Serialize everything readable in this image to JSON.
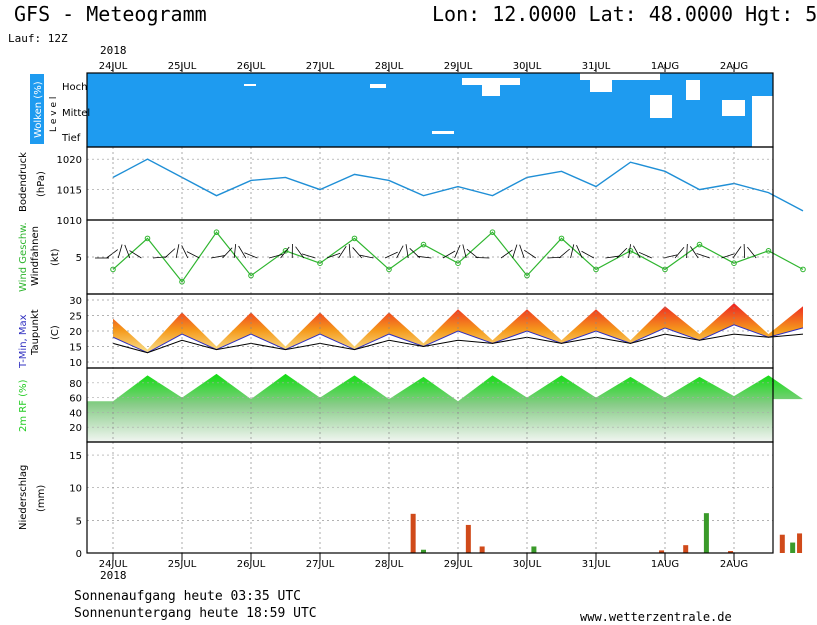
{
  "header": {
    "title": "GFS - Meteogramm",
    "location": "Lon: 12.0000 Lat: 48.0000 Hgt: 5",
    "run": "Lauf: 12Z"
  },
  "axis": {
    "year": "2018",
    "dates": [
      "24JUL",
      "25JUL",
      "26JUL",
      "27JUL",
      "28JUL",
      "29JUL",
      "30JUL",
      "31JUL",
      "1AUG",
      "2AUG"
    ]
  },
  "footer": {
    "sunrise": "Sonnenaufgang heute 03:35 UTC",
    "sunset": "Sonnenuntergang heute 18:59 UTC",
    "source": "www.wetterzentrale.de"
  },
  "colors": {
    "clouds": "#1e9bf0",
    "pressure": "#1f8fd6",
    "wind": "#2fb52f",
    "temp_max": "#ee2222",
    "temp_mid": "#f59a1c",
    "dewpoint": "#000000",
    "tmin": "#3030c0",
    "rh": "#22cc22",
    "precip_conv": "#d04a1a",
    "precip_green": "#3a9a2a"
  },
  "chart_data": [
    {
      "type": "area",
      "panel": "clouds",
      "ylabel": "Wolken (%)",
      "levels": [
        "Hoch",
        "Mittel",
        "Tief"
      ],
      "level_axis_label": "L e v e l"
    },
    {
      "type": "line",
      "panel": "pressure",
      "ylabel": "Bodendruck",
      "unit": "(hPa)",
      "ylim": [
        1010,
        1022
      ],
      "yticks": [
        1010,
        1015,
        1020
      ],
      "x": [
        0,
        0.5,
        1,
        1.5,
        2,
        2.5,
        3,
        3.5,
        4,
        4.5,
        5,
        5.5,
        6,
        6.5,
        7,
        7.5,
        8,
        8.5,
        9,
        9.5,
        10
      ],
      "values": [
        1017,
        1020,
        1017,
        1014,
        1016.5,
        1017,
        1015,
        1017.5,
        1016.5,
        1014,
        1015.5,
        1014,
        1017,
        1018,
        1015.5,
        1019.5,
        1018,
        1015,
        1016,
        1014.5,
        1011.5
      ]
    },
    {
      "type": "line",
      "panel": "wind",
      "ylabel": "Wind Geschw.",
      "ylabel2": "Windfahnen",
      "unit": "(kt)",
      "yticks": [
        5
      ],
      "x": [
        0,
        0.5,
        1,
        1.5,
        2,
        2.5,
        3,
        3.5,
        4,
        4.5,
        5,
        5.5,
        6,
        6.5,
        7,
        7.5,
        8,
        8.5,
        9,
        9.5,
        10
      ],
      "values": [
        3,
        8,
        1,
        9,
        2,
        6,
        4,
        8,
        3,
        7,
        4,
        9,
        2,
        8,
        3,
        6,
        3,
        7,
        4,
        6,
        3
      ]
    },
    {
      "type": "area",
      "panel": "temperature",
      "ylabel": "T-Min, Max",
      "ylabel2": "Taupunkt",
      "unit": "(C)",
      "yticks": [
        10,
        15,
        20,
        25,
        30
      ],
      "x": [
        0,
        0.5,
        1,
        1.5,
        2,
        2.5,
        3,
        3.5,
        4,
        4.5,
        5,
        5.5,
        6,
        6.5,
        7,
        7.5,
        8,
        8.5,
        9,
        9.5,
        10
      ],
      "tmax": [
        24,
        14,
        26,
        15,
        26,
        15,
        26,
        15,
        26,
        16,
        27,
        17,
        27,
        17,
        27,
        17,
        28,
        19,
        29,
        19,
        28
      ],
      "tmin": [
        18,
        13,
        19,
        14,
        19,
        14,
        19,
        14,
        19,
        15,
        20,
        16,
        20,
        16,
        20,
        16,
        21,
        17,
        22,
        18,
        21
      ],
      "dewpoint": [
        16,
        13,
        17,
        14,
        16,
        14,
        16,
        14,
        17,
        15,
        17,
        16,
        18,
        16,
        18,
        16,
        19,
        17,
        19,
        18,
        19
      ]
    },
    {
      "type": "area",
      "panel": "humidity",
      "ylabel": "2m RF (%)",
      "ylim": [
        0,
        100
      ],
      "yticks": [
        20,
        40,
        60,
        80
      ],
      "x": [
        0,
        0.5,
        1,
        1.5,
        2,
        2.5,
        3,
        3.5,
        4,
        4.5,
        5,
        5.5,
        6,
        6.5,
        7,
        7.5,
        8,
        8.5,
        9,
        9.5,
        10
      ],
      "values": [
        55,
        90,
        60,
        92,
        58,
        92,
        60,
        90,
        58,
        88,
        55,
        90,
        60,
        90,
        60,
        88,
        60,
        88,
        62,
        90,
        58
      ]
    },
    {
      "type": "bar",
      "panel": "precipitation",
      "ylabel": "Niederschlag",
      "unit": "(mm)",
      "ylim": [
        0,
        17
      ],
      "yticks": [
        0,
        5,
        10,
        15
      ],
      "x": [
        4.35,
        4.5,
        5.15,
        5.35,
        6.1,
        7.95,
        8.3,
        8.6,
        8.95,
        9.7,
        9.85,
        9.95
      ],
      "values": [
        6,
        0.5,
        4.3,
        1.0,
        1.0,
        0.4,
        1.2,
        6.1,
        0.3,
        2.8,
        1.6,
        3.0
      ]
    }
  ]
}
